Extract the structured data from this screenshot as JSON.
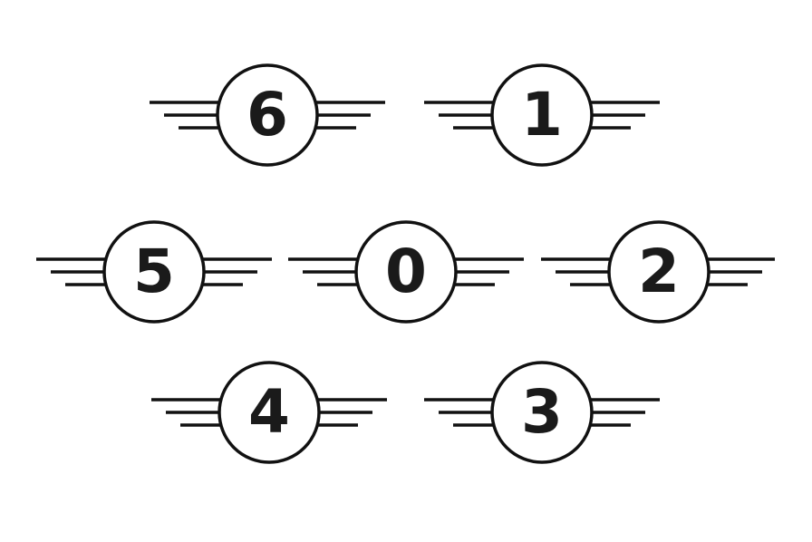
{
  "colors": {
    "background": "#ffffff",
    "stroke": "#111111",
    "digit": "#1a1a1a"
  },
  "badges": [
    {
      "icon": "winged-circle-icon",
      "number": "6"
    },
    {
      "icon": "winged-circle-icon",
      "number": "1"
    },
    {
      "icon": "winged-circle-icon",
      "number": "5"
    },
    {
      "icon": "winged-circle-icon",
      "number": "0"
    },
    {
      "icon": "winged-circle-icon",
      "number": "2"
    },
    {
      "icon": "winged-circle-icon",
      "number": "4"
    },
    {
      "icon": "winged-circle-icon",
      "number": "3"
    }
  ]
}
